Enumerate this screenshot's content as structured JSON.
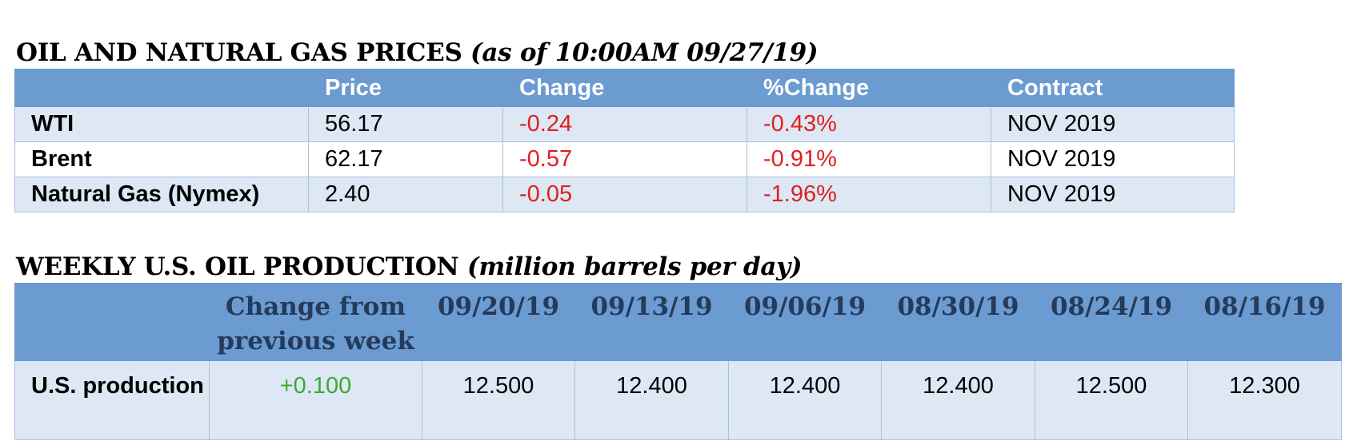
{
  "prices_section": {
    "title": "OIL AND NATURAL GAS PRICES",
    "subtitle": "(as of 10:00AM 09/27/19)",
    "headers": [
      "",
      "Price",
      "Change",
      "%Change",
      "Contract"
    ],
    "rows": [
      {
        "name": "WTI",
        "price": "56.17",
        "change": "-0.24",
        "pct_change": "-0.43%",
        "contract": "NOV 2019"
      },
      {
        "name": "Brent",
        "price": "62.17",
        "change": "-0.57",
        "pct_change": "-0.91%",
        "contract": "NOV 2019"
      },
      {
        "name": "Natural Gas (Nymex)",
        "price": "2.40",
        "change": "-0.05",
        "pct_change": "-1.96%",
        "contract": "NOV 2019"
      }
    ]
  },
  "production_section": {
    "title": "WEEKLY U.S. OIL PRODUCTION",
    "subtitle": "(million barrels per day)",
    "headers": [
      "",
      "Change from previous week",
      "09/20/19",
      "09/13/19",
      "09/06/19",
      "08/30/19",
      "08/24/19",
      "08/16/19"
    ],
    "row": {
      "label": "U.S. production",
      "change": "+0.100",
      "values": [
        "12.500",
        "12.400",
        "12.400",
        "12.400",
        "12.500",
        "12.300"
      ]
    }
  },
  "colors": {
    "header_bg": "#6b9bd1",
    "row_shade": "#dde8f4",
    "negative": "#e02020",
    "positive": "#3aaa35"
  }
}
